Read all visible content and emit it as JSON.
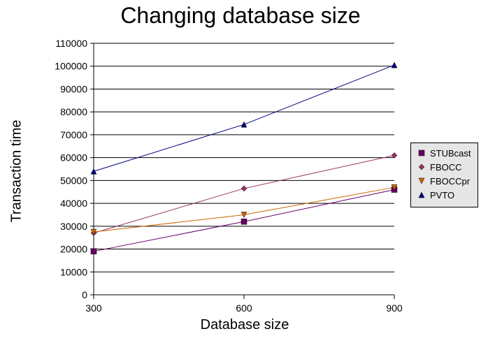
{
  "chart_data": {
    "type": "line",
    "title": "Changing database size",
    "xlabel": "Database size",
    "ylabel": "Transaction time",
    "x": [
      300,
      600,
      900
    ],
    "x_ticks": [
      "300",
      "600",
      "900"
    ],
    "y_ticks": [
      "0",
      "10000",
      "20000",
      "30000",
      "40000",
      "50000",
      "60000",
      "70000",
      "80000",
      "90000",
      "100000",
      "110000"
    ],
    "ylim": [
      0,
      110000
    ],
    "grid": true,
    "legend_position": "right",
    "series": [
      {
        "name": "STUBcast",
        "values": [
          19000,
          32000,
          46000
        ],
        "color": "#660066",
        "marker": "square"
      },
      {
        "name": "FBOCC",
        "values": [
          27000,
          46500,
          61000
        ],
        "color": "#993366",
        "marker": "diamond"
      },
      {
        "name": "FBOCCpr",
        "values": [
          27500,
          35000,
          47000
        ],
        "color": "#cc6600",
        "marker": "triangle-down"
      },
      {
        "name": "PVTO",
        "values": [
          54000,
          74500,
          100500
        ],
        "color": "#000080",
        "marker": "triangle-up"
      }
    ]
  }
}
